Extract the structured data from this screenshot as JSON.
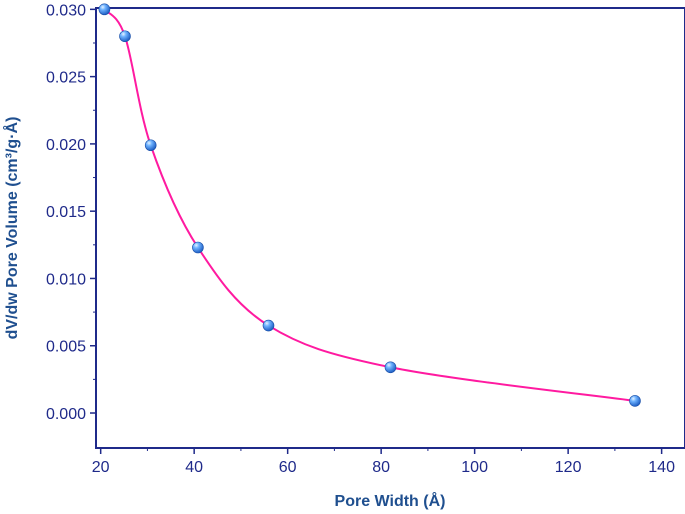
{
  "chart_data": {
    "type": "line",
    "title": "",
    "xlabel": "Pore Width (Å)",
    "ylabel": "dV/dw Pore Volume (cm³/g·Å)",
    "xlim": [
      19,
      145
    ],
    "ylim": [
      -0.0026,
      0.0301
    ],
    "x_ticks": [
      20,
      40,
      60,
      80,
      100,
      120,
      140
    ],
    "x_tick_labels": [
      "20",
      "40",
      "60",
      "80",
      "100",
      "120",
      "140"
    ],
    "y_ticks": [
      0.0,
      0.005,
      0.01,
      0.015,
      0.02,
      0.025,
      0.03
    ],
    "y_tick_labels": [
      "0.000",
      "0.005",
      "0.010",
      "0.015",
      "0.020",
      "0.025",
      "0.030"
    ],
    "grid": false,
    "series": [
      {
        "x": [
          20.8,
          25.2,
          30.7,
          40.8,
          55.9,
          82.0,
          134.3
        ],
        "y": [
          0.03,
          0.028,
          0.0199,
          0.0123,
          0.0065,
          0.0034,
          0.0009
        ],
        "line_color": "#ff1aa0",
        "marker_color": "#3a8fe8"
      }
    ]
  }
}
